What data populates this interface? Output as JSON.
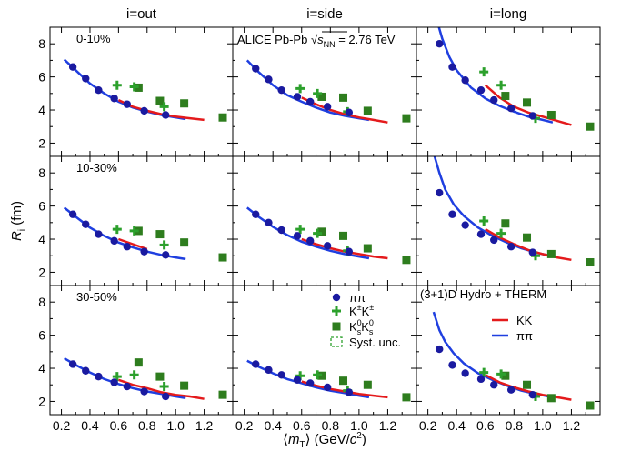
{
  "chart_data": {
    "type": "scatter",
    "xlabel": "⟨m_T⟩ (GeV/c²)",
    "ylabel": "R_i (fm)",
    "x_ticks": [
      0.2,
      0.4,
      0.6,
      0.8,
      1.0,
      1.2
    ],
    "y_ticks": [
      2,
      4,
      6,
      8
    ],
    "xlim": [
      0.12,
      1.4
    ],
    "ylim": [
      1.2,
      9.0
    ],
    "columns": [
      "i=out",
      "i=side",
      "i=long"
    ],
    "rows": [
      "0-10%",
      "10-30%",
      "30-50%"
    ],
    "experiment_label": "ALICE Pb-Pb √s_NN = 2.76 TeV",
    "model_label": "(3+1)D Hydro + THERM",
    "series_styles": {
      "pipi": {
        "label": "ππ",
        "color": "#1a1aa0",
        "marker": "circle"
      },
      "KchKch": {
        "label": "K±K±",
        "color": "#2ca02c",
        "marker": "cross"
      },
      "K0K0": {
        "label": "K⁰sK⁰s",
        "color": "#2e7d1e",
        "marker": "square"
      },
      "syst": {
        "label": "Syst. unc.",
        "color": "#2ca02c",
        "marker": "dashed-box"
      }
    },
    "model_styles": {
      "KK": {
        "label": "KK",
        "color": "#e41a1c"
      },
      "pipi": {
        "label": "ππ",
        "color": "#1f3fe0"
      }
    },
    "panels": [
      {
        "col": 0,
        "row": 0,
        "pipi": [
          [
            0.28,
            6.6
          ],
          [
            0.37,
            5.9
          ],
          [
            0.46,
            5.2
          ],
          [
            0.57,
            4.7
          ],
          [
            0.66,
            4.35
          ],
          [
            0.78,
            3.95
          ],
          [
            0.93,
            3.7
          ]
        ],
        "KchKch": [
          [
            0.59,
            5.5
          ],
          [
            0.71,
            5.4
          ],
          [
            0.92,
            4.2
          ]
        ],
        "K0K0": [
          [
            0.74,
            5.35
          ],
          [
            0.89,
            4.55
          ],
          [
            1.06,
            4.4
          ],
          [
            1.33,
            3.55
          ]
        ],
        "model_pipi": [
          [
            0.22,
            7.05
          ],
          [
            0.3,
            6.4
          ],
          [
            0.4,
            5.6
          ],
          [
            0.5,
            5.0
          ],
          [
            0.6,
            4.5
          ],
          [
            0.7,
            4.15
          ],
          [
            0.8,
            3.9
          ],
          [
            0.9,
            3.7
          ],
          [
            1.0,
            3.55
          ],
          [
            1.07,
            3.45
          ]
        ],
        "model_KK": [
          [
            0.6,
            4.6
          ],
          [
            0.7,
            4.2
          ],
          [
            0.8,
            3.95
          ],
          [
            0.9,
            3.75
          ],
          [
            1.0,
            3.6
          ],
          [
            1.1,
            3.5
          ],
          [
            1.2,
            3.4
          ]
        ]
      },
      {
        "col": 1,
        "row": 0,
        "pipi": [
          [
            0.28,
            6.5
          ],
          [
            0.37,
            5.85
          ],
          [
            0.46,
            5.2
          ],
          [
            0.57,
            4.8
          ],
          [
            0.66,
            4.5
          ],
          [
            0.78,
            4.2
          ],
          [
            0.93,
            3.85
          ]
        ],
        "KchKch": [
          [
            0.59,
            5.3
          ],
          [
            0.71,
            5.0
          ],
          [
            0.92,
            3.9
          ]
        ],
        "K0K0": [
          [
            0.74,
            4.8
          ],
          [
            0.89,
            4.75
          ],
          [
            1.06,
            3.95
          ],
          [
            1.33,
            3.5
          ]
        ],
        "model_pipi": [
          [
            0.22,
            7.0
          ],
          [
            0.3,
            6.3
          ],
          [
            0.4,
            5.5
          ],
          [
            0.5,
            4.9
          ],
          [
            0.6,
            4.5
          ],
          [
            0.7,
            4.15
          ],
          [
            0.8,
            3.85
          ],
          [
            0.9,
            3.65
          ],
          [
            1.0,
            3.5
          ],
          [
            1.07,
            3.4
          ]
        ],
        "model_KK": [
          [
            0.6,
            4.75
          ],
          [
            0.7,
            4.35
          ],
          [
            0.8,
            4.0
          ],
          [
            0.9,
            3.75
          ],
          [
            1.0,
            3.55
          ],
          [
            1.1,
            3.4
          ],
          [
            1.2,
            3.25
          ]
        ]
      },
      {
        "col": 2,
        "row": 0,
        "pipi": [
          [
            0.28,
            8.0
          ],
          [
            0.37,
            6.6
          ],
          [
            0.46,
            5.8
          ],
          [
            0.57,
            5.2
          ],
          [
            0.66,
            4.6
          ],
          [
            0.78,
            4.1
          ],
          [
            0.93,
            3.65
          ]
        ],
        "KchKch": [
          [
            0.59,
            6.3
          ],
          [
            0.71,
            5.5
          ],
          [
            0.95,
            3.5
          ]
        ],
        "K0K0": [
          [
            0.74,
            4.85
          ],
          [
            0.89,
            4.45
          ],
          [
            1.06,
            3.7
          ],
          [
            1.33,
            3.0
          ]
        ],
        "model_pipi": [
          [
            0.27,
            9.2
          ],
          [
            0.3,
            8.3
          ],
          [
            0.35,
            7.2
          ],
          [
            0.4,
            6.4
          ],
          [
            0.5,
            5.35
          ],
          [
            0.6,
            4.7
          ],
          [
            0.7,
            4.25
          ],
          [
            0.8,
            3.9
          ],
          [
            0.9,
            3.6
          ],
          [
            1.0,
            3.4
          ],
          [
            1.07,
            3.25
          ]
        ],
        "model_KK": [
          [
            0.6,
            5.5
          ],
          [
            0.7,
            4.75
          ],
          [
            0.8,
            4.2
          ],
          [
            0.9,
            3.85
          ],
          [
            1.0,
            3.6
          ],
          [
            1.1,
            3.35
          ],
          [
            1.2,
            3.1
          ]
        ]
      },
      {
        "col": 0,
        "row": 1,
        "pipi": [
          [
            0.28,
            5.5
          ],
          [
            0.37,
            4.9
          ],
          [
            0.46,
            4.3
          ],
          [
            0.57,
            3.9
          ],
          [
            0.66,
            3.55
          ],
          [
            0.78,
            3.25
          ],
          [
            0.93,
            3.05
          ]
        ],
        "KchKch": [
          [
            0.59,
            4.6
          ],
          [
            0.71,
            4.5
          ],
          [
            0.92,
            3.65
          ]
        ],
        "K0K0": [
          [
            0.74,
            4.5
          ],
          [
            0.89,
            4.3
          ],
          [
            1.06,
            3.8
          ],
          [
            1.33,
            2.9
          ]
        ],
        "model_pipi": [
          [
            0.22,
            5.9
          ],
          [
            0.3,
            5.35
          ],
          [
            0.4,
            4.7
          ],
          [
            0.5,
            4.2
          ],
          [
            0.6,
            3.8
          ],
          [
            0.7,
            3.5
          ],
          [
            0.8,
            3.25
          ],
          [
            0.9,
            3.05
          ],
          [
            1.0,
            2.9
          ],
          [
            1.07,
            2.8
          ]
        ],
        "model_KK": [
          [
            0.6,
            4.0
          ],
          [
            0.7,
            3.7
          ],
          [
            0.8,
            3.4
          ]
        ]
      },
      {
        "col": 1,
        "row": 1,
        "pipi": [
          [
            0.28,
            5.5
          ],
          [
            0.37,
            5.0
          ],
          [
            0.46,
            4.55
          ],
          [
            0.57,
            4.2
          ],
          [
            0.66,
            3.9
          ],
          [
            0.78,
            3.6
          ],
          [
            0.93,
            3.25
          ]
        ],
        "KchKch": [
          [
            0.59,
            4.6
          ],
          [
            0.71,
            4.35
          ],
          [
            0.92,
            3.3
          ]
        ],
        "K0K0": [
          [
            0.74,
            4.45
          ],
          [
            0.89,
            4.2
          ],
          [
            1.06,
            3.45
          ],
          [
            1.33,
            2.75
          ]
        ],
        "model_pipi": [
          [
            0.22,
            5.9
          ],
          [
            0.3,
            5.35
          ],
          [
            0.4,
            4.75
          ],
          [
            0.5,
            4.25
          ],
          [
            0.6,
            3.85
          ],
          [
            0.7,
            3.55
          ],
          [
            0.8,
            3.3
          ],
          [
            0.9,
            3.1
          ],
          [
            1.0,
            2.95
          ],
          [
            1.07,
            2.85
          ]
        ],
        "model_KK": [
          [
            0.6,
            4.0
          ],
          [
            0.7,
            3.7
          ],
          [
            0.8,
            3.45
          ],
          [
            0.9,
            3.25
          ],
          [
            1.0,
            3.1
          ],
          [
            1.1,
            2.95
          ],
          [
            1.2,
            2.85
          ]
        ]
      },
      {
        "col": 2,
        "row": 1,
        "pipi": [
          [
            0.28,
            6.8
          ],
          [
            0.37,
            5.5
          ],
          [
            0.46,
            4.85
          ],
          [
            0.57,
            4.3
          ],
          [
            0.66,
            3.95
          ],
          [
            0.78,
            3.55
          ],
          [
            0.93,
            3.2
          ]
        ],
        "KchKch": [
          [
            0.59,
            5.1
          ],
          [
            0.71,
            4.35
          ],
          [
            0.95,
            3.0
          ]
        ],
        "K0K0": [
          [
            0.74,
            4.95
          ],
          [
            0.89,
            4.1
          ],
          [
            1.06,
            3.1
          ],
          [
            1.33,
            2.6
          ]
        ],
        "model_pipi": [
          [
            0.24,
            9.2
          ],
          [
            0.28,
            8.0
          ],
          [
            0.32,
            7.0
          ],
          [
            0.38,
            6.1
          ],
          [
            0.45,
            5.4
          ],
          [
            0.55,
            4.7
          ],
          [
            0.65,
            4.2
          ],
          [
            0.75,
            3.8
          ],
          [
            0.85,
            3.45
          ],
          [
            0.95,
            3.2
          ],
          [
            1.07,
            2.95
          ]
        ],
        "model_KK": [
          [
            0.6,
            4.6
          ],
          [
            0.7,
            4.1
          ],
          [
            0.8,
            3.7
          ],
          [
            0.9,
            3.35
          ],
          [
            1.0,
            3.1
          ],
          [
            1.1,
            2.9
          ],
          [
            1.2,
            2.75
          ]
        ]
      },
      {
        "col": 0,
        "row": 2,
        "pipi": [
          [
            0.28,
            4.25
          ],
          [
            0.37,
            3.85
          ],
          [
            0.46,
            3.5
          ],
          [
            0.57,
            3.15
          ],
          [
            0.66,
            2.9
          ],
          [
            0.78,
            2.6
          ],
          [
            0.93,
            2.3
          ]
        ],
        "KchKch": [
          [
            0.59,
            3.5
          ],
          [
            0.71,
            3.6
          ],
          [
            0.92,
            2.9
          ]
        ],
        "K0K0": [
          [
            0.74,
            4.35
          ],
          [
            0.89,
            3.5
          ],
          [
            1.06,
            2.95
          ],
          [
            1.33,
            2.4
          ]
        ],
        "model_pipi": [
          [
            0.22,
            4.6
          ],
          [
            0.3,
            4.2
          ],
          [
            0.4,
            3.75
          ],
          [
            0.5,
            3.35
          ],
          [
            0.6,
            3.05
          ],
          [
            0.7,
            2.8
          ],
          [
            0.8,
            2.6
          ],
          [
            0.9,
            2.45
          ],
          [
            1.0,
            2.3
          ],
          [
            1.07,
            2.2
          ]
        ],
        "model_KK": [
          [
            0.6,
            3.3
          ],
          [
            0.7,
            3.0
          ],
          [
            0.8,
            2.8
          ],
          [
            0.9,
            2.55
          ],
          [
            1.0,
            2.4
          ],
          [
            1.1,
            2.3
          ],
          [
            1.2,
            2.15
          ]
        ]
      },
      {
        "col": 1,
        "row": 2,
        "pipi": [
          [
            0.28,
            4.25
          ],
          [
            0.37,
            3.9
          ],
          [
            0.46,
            3.6
          ],
          [
            0.57,
            3.3
          ],
          [
            0.66,
            3.1
          ],
          [
            0.78,
            2.85
          ],
          [
            0.93,
            2.55
          ]
        ],
        "KchKch": [
          [
            0.59,
            3.55
          ],
          [
            0.71,
            3.6
          ],
          [
            0.92,
            2.65
          ]
        ],
        "K0K0": [
          [
            0.74,
            3.55
          ],
          [
            0.89,
            3.25
          ],
          [
            1.06,
            3.0
          ],
          [
            1.33,
            2.25
          ]
        ],
        "model_pipi": [
          [
            0.22,
            4.45
          ],
          [
            0.3,
            4.1
          ],
          [
            0.4,
            3.7
          ],
          [
            0.5,
            3.35
          ],
          [
            0.6,
            3.1
          ],
          [
            0.7,
            2.85
          ],
          [
            0.8,
            2.65
          ],
          [
            0.9,
            2.5
          ],
          [
            1.0,
            2.35
          ],
          [
            1.07,
            2.25
          ]
        ],
        "model_KK": [
          [
            0.6,
            3.2
          ],
          [
            0.7,
            2.95
          ],
          [
            0.8,
            2.75
          ],
          [
            0.9,
            2.6
          ],
          [
            1.0,
            2.45
          ],
          [
            1.1,
            2.35
          ],
          [
            1.2,
            2.25
          ]
        ]
      },
      {
        "col": 2,
        "row": 2,
        "pipi": [
          [
            0.28,
            5.15
          ],
          [
            0.37,
            4.2
          ],
          [
            0.46,
            3.7
          ],
          [
            0.57,
            3.35
          ],
          [
            0.66,
            3.0
          ],
          [
            0.78,
            2.7
          ],
          [
            0.93,
            2.4
          ]
        ],
        "KchKch": [
          [
            0.59,
            3.75
          ],
          [
            0.71,
            3.65
          ],
          [
            0.95,
            2.3
          ]
        ],
        "K0K0": [
          [
            0.74,
            3.55
          ],
          [
            0.89,
            3.0
          ],
          [
            1.06,
            2.2
          ],
          [
            1.33,
            1.75
          ]
        ],
        "model_pipi": [
          [
            0.24,
            7.4
          ],
          [
            0.28,
            6.3
          ],
          [
            0.32,
            5.6
          ],
          [
            0.38,
            4.9
          ],
          [
            0.45,
            4.3
          ],
          [
            0.55,
            3.7
          ],
          [
            0.65,
            3.3
          ],
          [
            0.75,
            2.95
          ],
          [
            0.85,
            2.65
          ],
          [
            0.95,
            2.45
          ],
          [
            1.07,
            2.25
          ]
        ],
        "model_KK": [
          [
            0.6,
            3.6
          ],
          [
            0.7,
            3.15
          ],
          [
            0.8,
            2.85
          ],
          [
            0.9,
            2.6
          ],
          [
            1.0,
            2.4
          ],
          [
            1.1,
            2.25
          ],
          [
            1.2,
            2.1
          ]
        ]
      }
    ]
  }
}
